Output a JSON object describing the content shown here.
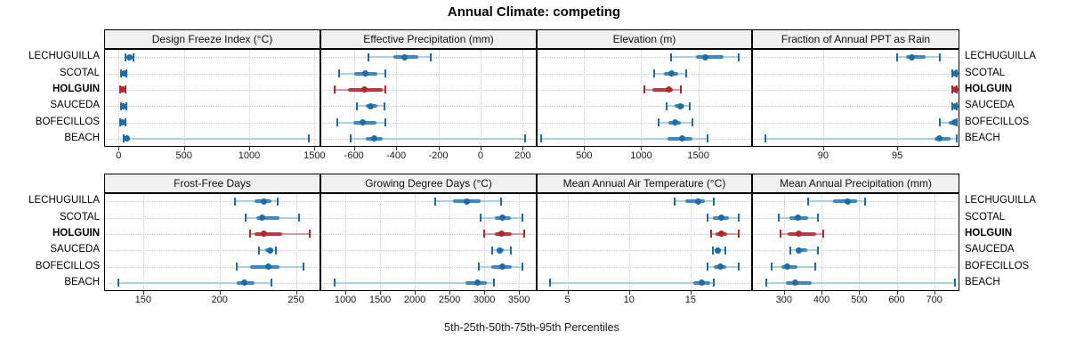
{
  "title": "Annual Climate: competing",
  "footer": "5th-25th-50th-75th-95th Percentiles",
  "sites": [
    "LECHUGUILLA",
    "SCOTAL",
    "HOLGUIN",
    "SAUCEDA",
    "BOFECILLOS",
    "BEACH"
  ],
  "highlight_site": "HOLGUIN",
  "colors": {
    "normal_dark": "#1B6CA8",
    "normal_band": "#3D89BE",
    "normal_light": "#ACCFE5",
    "highlight_dark": "#B1272C",
    "highlight_band": "#BB3A3F",
    "highlight_light": "#DC9898",
    "grid": "#C9C9C9",
    "strip_bg": "#F0F0F0",
    "panel_border": "#000000"
  },
  "chart_data": {
    "type": "dotplot-percentiles",
    "title": "Annual Climate: competing",
    "xlabel": "5th-25th-50th-75th-95th Percentiles",
    "percentile_labels": [
      "5th",
      "25th",
      "50th",
      "75th",
      "95th"
    ],
    "legend_position": "none",
    "grid": "dotted",
    "panels": [
      {
        "slug": "design-freeze-index",
        "title": "Design Freeze Index (°C)",
        "row": 0,
        "col": 0,
        "xlim": [
          -111,
          1545
        ],
        "ticks": [
          0,
          500,
          1000,
          1500
        ],
        "values": {
          "LECHUGUILLA": [
            55,
            75,
            86,
            100,
            115
          ],
          "SCOTAL": [
            20,
            32,
            39,
            48,
            62
          ],
          "HOLGUIN": [
            10,
            20,
            28,
            36,
            50
          ],
          "SAUCEDA": [
            18,
            30,
            36,
            44,
            57
          ],
          "BOFECILLOS": [
            12,
            22,
            30,
            40,
            55
          ],
          "BEACH": [
            40,
            52,
            61,
            73,
            1455
          ]
        }
      },
      {
        "slug": "effective-precipitation",
        "title": "Effective Precipitation (mm)",
        "row": 0,
        "col": 1,
        "xlim": [
          -759,
          266
        ],
        "ticks": [
          -600,
          -400,
          -200,
          0,
          200
        ],
        "values": {
          "LECHUGUILLA": [
            -530,
            -415,
            -360,
            -295,
            -235
          ],
          "SCOTAL": [
            -670,
            -600,
            -545,
            -490,
            -450
          ],
          "HOLGUIN": [
            -690,
            -630,
            -550,
            -465,
            -450
          ],
          "SAUCEDA": [
            -585,
            -545,
            -520,
            -490,
            -455
          ],
          "BOFECILLOS": [
            -680,
            -605,
            -560,
            -495,
            -450
          ],
          "BEACH": [
            -615,
            -545,
            -505,
            -465,
            210
          ]
        }
      },
      {
        "slug": "elevation",
        "title": "Elevation (m)",
        "row": 0,
        "col": 2,
        "xlim": [
          85,
          1970
        ],
        "ticks": [
          500,
          1000,
          1500
        ],
        "values": {
          "LECHUGUILLA": [
            1265,
            1480,
            1560,
            1720,
            1850
          ],
          "SCOTAL": [
            1110,
            1200,
            1265,
            1320,
            1395
          ],
          "HOLGUIN": [
            1030,
            1100,
            1240,
            1280,
            1350
          ],
          "SAUCEDA": [
            1225,
            1295,
            1340,
            1380,
            1425
          ],
          "BOFECILLOS": [
            1155,
            1240,
            1300,
            1350,
            1445
          ],
          "BEACH": [
            125,
            1230,
            1360,
            1450,
            1580
          ]
        }
      },
      {
        "slug": "fraction-annual-ppt-as-rain",
        "title": "Fraction of Annual PPT as Rain",
        "row": 0,
        "col": 3,
        "xlim": [
          85.2,
          99.2
        ],
        "ticks": [
          90,
          95
        ],
        "values": {
          "LECHUGUILLA": [
            95.0,
            95.6,
            96.0,
            96.9,
            97.9
          ],
          "SCOTAL": [
            98.7,
            98.8,
            98.9,
            98.95,
            99.0
          ],
          "HOLGUIN": [
            98.7,
            98.8,
            98.9,
            98.95,
            99.0
          ],
          "SAUCEDA": [
            98.7,
            98.8,
            98.9,
            98.95,
            99.0
          ],
          "BOFECILLOS": [
            97.9,
            98.5,
            98.85,
            98.95,
            99.0
          ],
          "BEACH": [
            86.1,
            97.5,
            97.85,
            98.6,
            99.0
          ]
        }
      },
      {
        "slug": "frost-free-days",
        "title": "Frost-Free Days",
        "row": 1,
        "col": 0,
        "xlim": [
          124.5,
          266
        ],
        "ticks": [
          150,
          200,
          250
        ],
        "values": {
          "LECHUGUILLA": [
            210,
            223,
            229,
            234,
            238
          ],
          "SCOTAL": [
            217,
            224,
            228,
            239,
            252
          ],
          "HOLGUIN": [
            220,
            223,
            229,
            241,
            259
          ],
          "SAUCEDA": [
            226,
            230,
            233,
            235,
            237
          ],
          "BOFECILLOS": [
            211,
            220,
            232,
            239,
            255
          ],
          "BEACH": [
            134,
            211,
            216,
            223,
            234
          ]
        }
      },
      {
        "slug": "growing-degree-days",
        "title": "Growing Degree Days (°C)",
        "row": 1,
        "col": 1,
        "xlim": [
          640,
          3755
        ],
        "ticks": [
          1000,
          1500,
          2000,
          2500,
          3000,
          3500
        ],
        "values": {
          "LECHUGUILLA": [
            2290,
            2550,
            2750,
            2950,
            3240
          ],
          "SCOTAL": [
            2950,
            3150,
            3260,
            3380,
            3550
          ],
          "HOLGUIN": [
            3000,
            3150,
            3250,
            3400,
            3580
          ],
          "SAUCEDA": [
            3120,
            3180,
            3225,
            3280,
            3380
          ],
          "BOFECILLOS": [
            2925,
            3100,
            3260,
            3390,
            3550
          ],
          "BEACH": [
            840,
            2735,
            2905,
            3040,
            3140
          ]
        }
      },
      {
        "slug": "mean-annual-air-temperature",
        "title": "Mean Annual Air Temperature (°C)",
        "row": 1,
        "col": 2,
        "xlim": [
          2.5,
          20
        ],
        "ticks": [
          5,
          10,
          15
        ],
        "values": {
          "LECHUGUILLA": [
            13.7,
            14.6,
            15.6,
            16.2,
            16.9
          ],
          "SCOTAL": [
            16.4,
            16.8,
            17.5,
            18.1,
            18.9
          ],
          "HOLGUIN": [
            16.7,
            17.0,
            17.5,
            18.0,
            18.9
          ],
          "SAUCEDA": [
            16.8,
            17.1,
            17.2,
            17.5,
            17.8
          ],
          "BOFECILLOS": [
            16.4,
            16.9,
            17.4,
            17.9,
            18.9
          ],
          "BEACH": [
            3.6,
            15.2,
            15.9,
            16.6,
            16.9
          ]
        }
      },
      {
        "slug": "mean-annual-precipitation",
        "title": "Mean Annual Precipitation (mm)",
        "row": 1,
        "col": 3,
        "xlim": [
          215,
          767
        ],
        "ticks": [
          300,
          400,
          500,
          600,
          700
        ],
        "values": {
          "LECHUGUILLA": [
            365,
            430,
            470,
            495,
            515
          ],
          "SCOTAL": [
            287,
            315,
            338,
            365,
            390
          ],
          "HOLGUIN": [
            290,
            310,
            340,
            385,
            405
          ],
          "SAUCEDA": [
            318,
            332,
            340,
            362,
            390
          ],
          "BOFECILLOS": [
            267,
            292,
            308,
            335,
            384
          ],
          "BEACH": [
            253,
            306,
            330,
            373,
            755
          ]
        }
      }
    ]
  }
}
